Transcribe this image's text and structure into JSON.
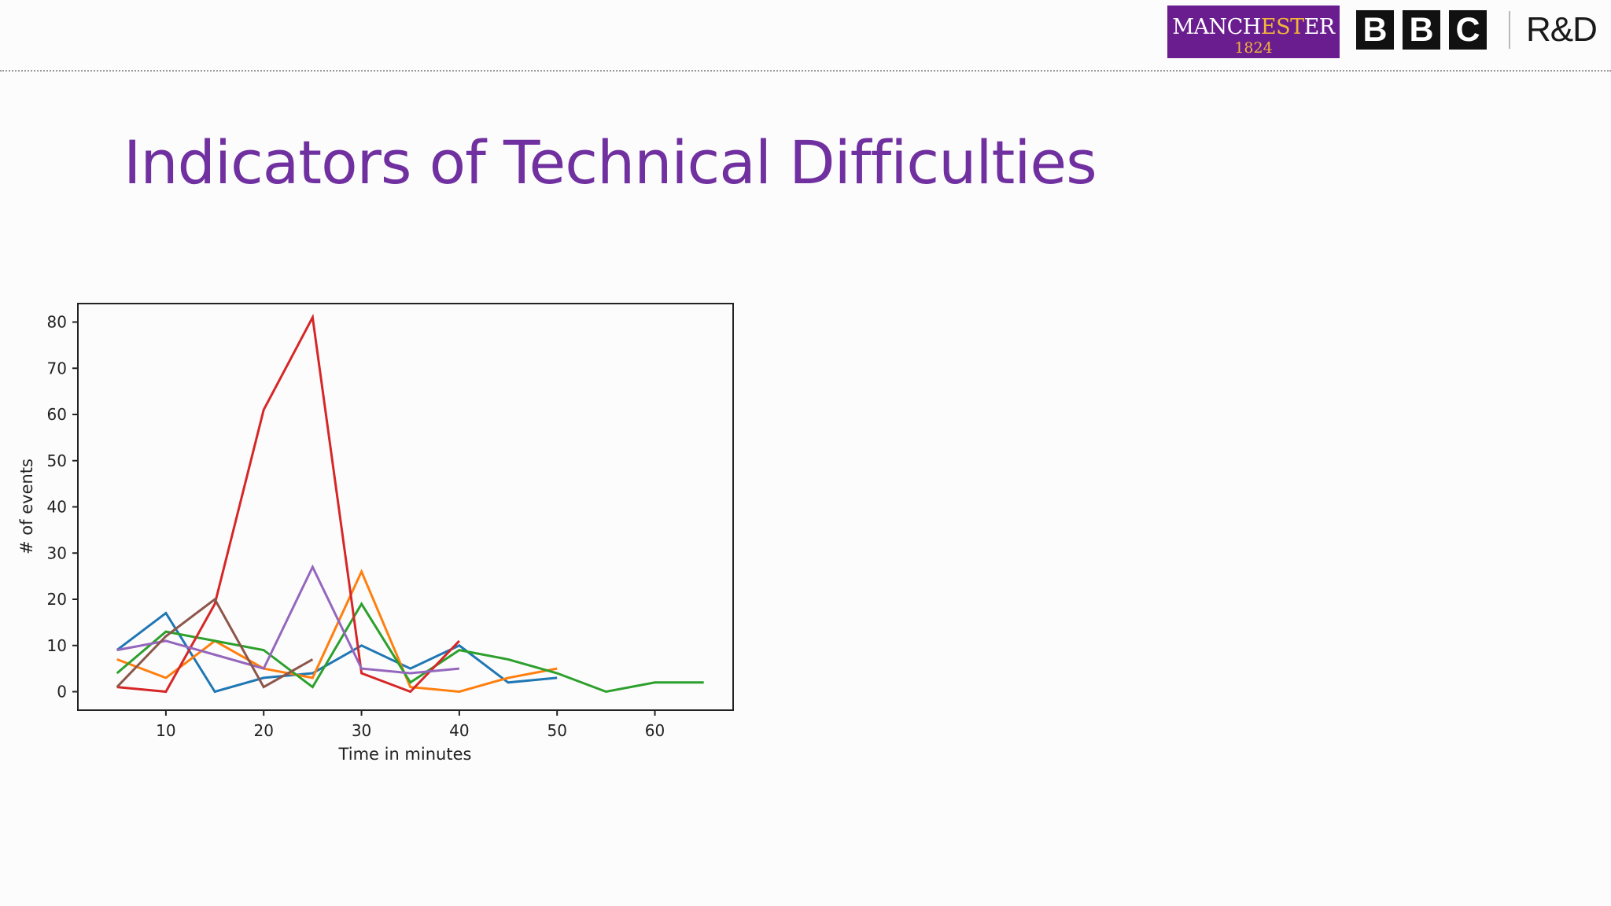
{
  "header": {
    "logos": {
      "manchester": {
        "name_a": "MANCH",
        "name_b": "EST",
        "name_c": "ER",
        "year": "1824"
      },
      "bbc": [
        "B",
        "B",
        "C"
      ],
      "rd": "R&D"
    }
  },
  "slide": {
    "title": "Indicators of Technical Difficulties"
  },
  "chart_data": {
    "type": "line",
    "title": "",
    "xlabel": "Time in minutes",
    "ylabel": "# of events",
    "xlim": [
      1,
      68
    ],
    "ylim": [
      -4,
      84
    ],
    "xticks": [
      10,
      20,
      30,
      40,
      50,
      60
    ],
    "yticks": [
      0,
      10,
      20,
      30,
      40,
      50,
      60,
      70,
      80
    ],
    "grid": false,
    "legend": "none",
    "series": [
      {
        "color": "#1f77b4",
        "x": [
          5,
          10,
          15,
          20,
          25,
          30,
          35,
          40,
          45,
          50
        ],
        "y": [
          9,
          17,
          0,
          3,
          4,
          10,
          5,
          10,
          2,
          3
        ]
      },
      {
        "color": "#ff7f0e",
        "x": [
          5,
          10,
          15,
          20,
          25,
          30,
          35,
          40,
          45,
          50
        ],
        "y": [
          7,
          3,
          11,
          5,
          3,
          26,
          1,
          0,
          3,
          5
        ]
      },
      {
        "color": "#2ca02c",
        "x": [
          5,
          10,
          15,
          20,
          25,
          30,
          35,
          40,
          45,
          50,
          55,
          60,
          65
        ],
        "y": [
          4,
          13,
          11,
          9,
          1,
          19,
          2,
          9,
          7,
          4,
          0,
          2,
          2
        ]
      },
      {
        "color": "#d62728",
        "x": [
          5,
          10,
          15,
          20,
          25,
          30,
          35,
          40
        ],
        "y": [
          1,
          0,
          19,
          61,
          81,
          4,
          0,
          11
        ]
      },
      {
        "color": "#9467bd",
        "x": [
          5,
          10,
          15,
          20,
          25,
          30,
          35,
          40
        ],
        "y": [
          9,
          11,
          8,
          5,
          27,
          5,
          4,
          5
        ]
      },
      {
        "color": "#8c564b",
        "x": [
          5,
          10,
          15,
          20,
          25
        ],
        "y": [
          1,
          12,
          20,
          1,
          7
        ]
      }
    ]
  }
}
